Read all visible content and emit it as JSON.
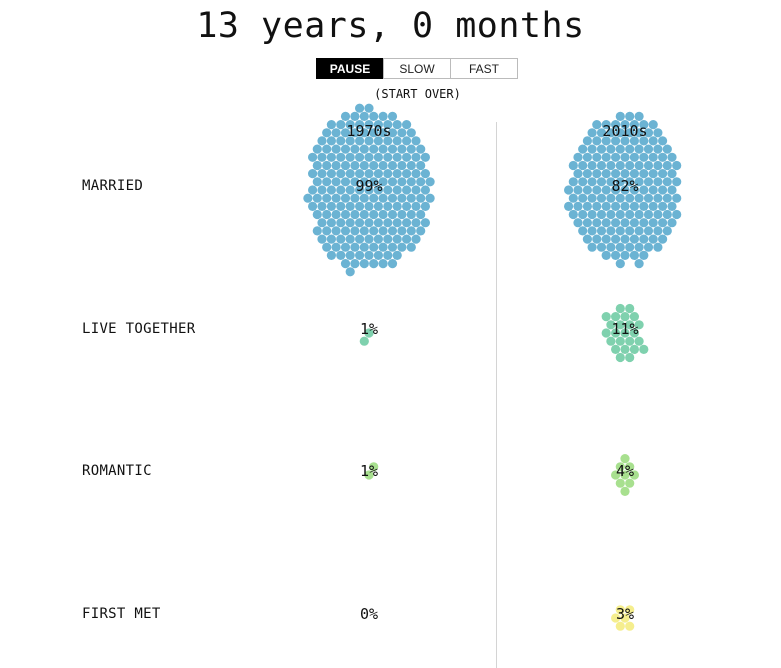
{
  "header": {
    "title": "13 years, 0 months",
    "buttons": [
      {
        "label": "PAUSE",
        "active": true
      },
      {
        "label": "SLOW",
        "active": false
      },
      {
        "label": "FAST",
        "active": false
      }
    ],
    "start_over": "(START OVER)"
  },
  "chart_data": {
    "type": "scatter",
    "title": "13 years, 0 months",
    "columns": [
      "1970s",
      "2010s"
    ],
    "rows": [
      "MARRIED",
      "LIVE TOGETHER",
      "ROMANTIC",
      "FIRST MET"
    ],
    "series": [
      {
        "name": "1970s",
        "values": [
          99,
          1,
          1,
          0
        ],
        "labels": [
          "99%",
          "1%",
          "1%",
          "0%"
        ]
      },
      {
        "name": "2010s",
        "values": [
          82,
          11,
          4,
          3
        ],
        "labels": [
          "82%",
          "11%",
          "4%",
          "3%"
        ]
      }
    ],
    "colors": {
      "MARRIED": "#6bb3d3",
      "LIVE TOGETHER": "#7fd1ae",
      "ROMANTIC": "#a8e08f",
      "FIRST MET": "#f5ee8e"
    }
  }
}
